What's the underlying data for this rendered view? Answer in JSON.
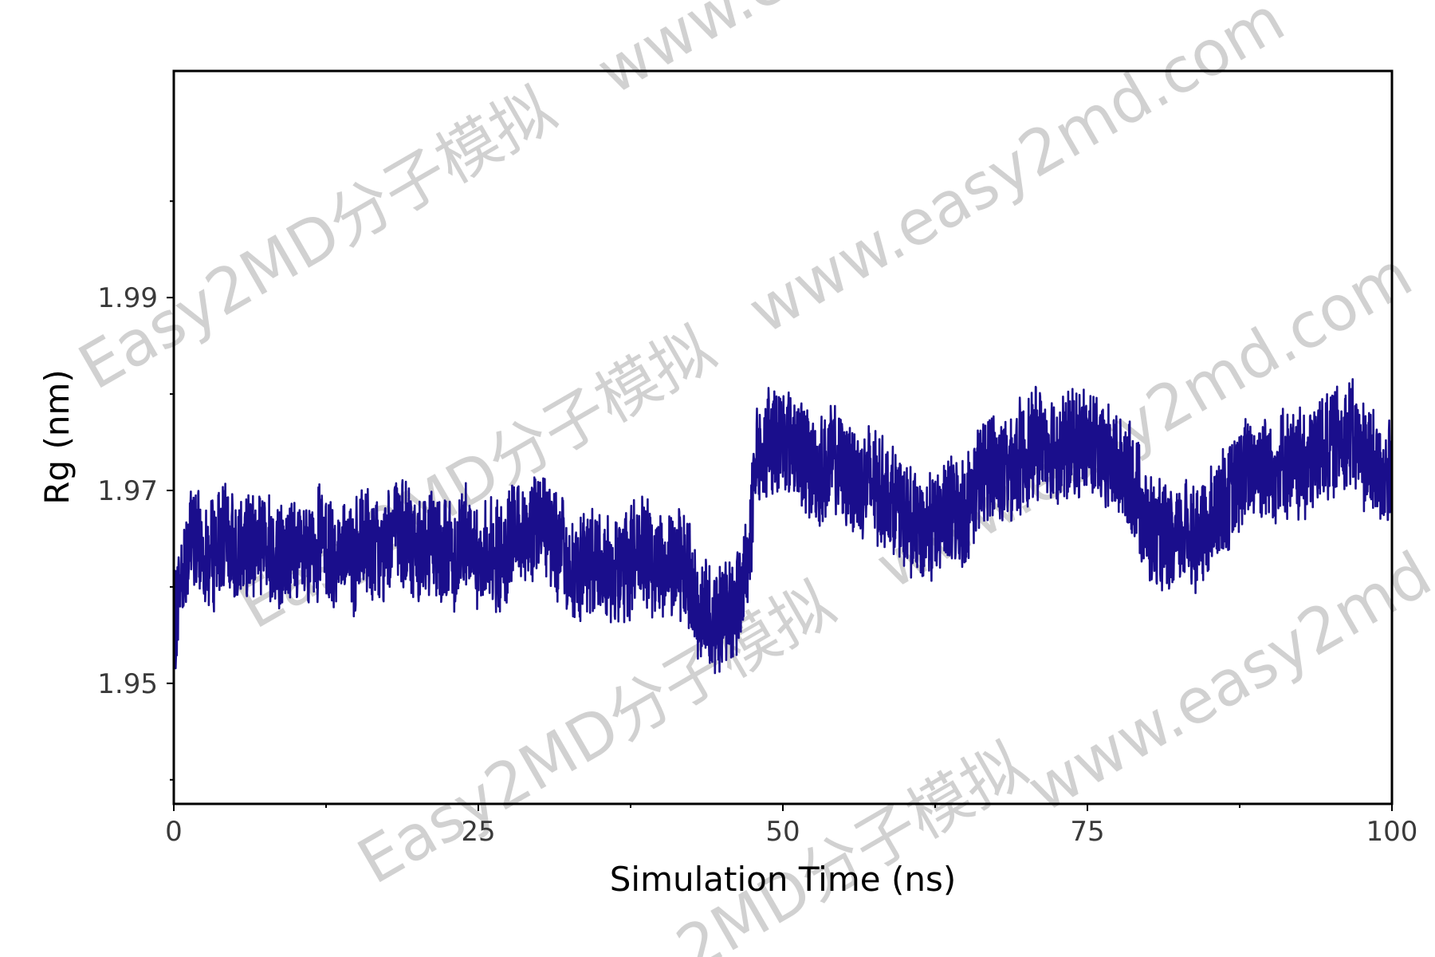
{
  "chart_data": {
    "type": "line",
    "title": "",
    "xlabel": "Simulation Time (ns)",
    "ylabel": "Rg (nm)",
    "xlim": [
      0,
      100
    ],
    "ylim": [
      1.9375,
      2.0135
    ],
    "x_ticks": [
      0,
      25,
      50,
      75,
      100
    ],
    "x_tick_labels": [
      "0",
      "25",
      "50",
      "75",
      "100"
    ],
    "x_minor_ticks": [
      12.5,
      37.5,
      62.5,
      87.5
    ],
    "y_ticks": [
      1.95,
      1.97,
      1.99
    ],
    "y_tick_labels": [
      "1.95",
      "1.97",
      "1.99"
    ],
    "y_minor_ticks": [
      1.94,
      1.96,
      1.98,
      2.0
    ],
    "grid": false,
    "legend": "none",
    "colors": {
      "line": "#1a0e8c",
      "axis": "#000000",
      "tick_label": "#3a3a3a",
      "watermark": "#c9c9c9"
    },
    "series": [
      {
        "x": [
          0,
          1,
          2,
          3,
          4,
          5,
          6,
          7,
          8,
          9,
          10,
          11,
          12,
          13,
          14,
          15,
          16,
          17,
          18,
          19,
          20,
          21,
          22,
          23,
          24,
          25,
          26,
          27,
          28,
          29,
          30,
          31,
          32,
          33,
          34,
          35,
          36,
          37,
          38,
          39,
          40,
          41,
          42,
          43,
          44,
          45,
          46,
          47,
          48,
          49,
          50,
          51,
          52,
          53,
          54,
          55,
          56,
          57,
          58,
          59,
          60,
          61,
          62,
          63,
          64,
          65,
          66,
          67,
          68,
          69,
          70,
          71,
          72,
          73,
          74,
          75,
          76,
          77,
          78,
          79,
          80,
          81,
          82,
          83,
          84,
          85,
          86,
          87,
          88,
          89,
          90,
          91,
          92,
          93,
          94,
          95,
          96,
          97,
          98,
          99,
          100
        ],
        "values": [
          1.956,
          1.964,
          1.965,
          1.963,
          1.965,
          1.964,
          1.964,
          1.965,
          1.964,
          1.963,
          1.964,
          1.962,
          1.965,
          1.963,
          1.964,
          1.963,
          1.965,
          1.963,
          1.966,
          1.965,
          1.964,
          1.965,
          1.964,
          1.963,
          1.966,
          1.963,
          1.964,
          1.962,
          1.966,
          1.965,
          1.967,
          1.966,
          1.963,
          1.961,
          1.962,
          1.963,
          1.962,
          1.962,
          1.964,
          1.963,
          1.962,
          1.963,
          1.962,
          1.958,
          1.957,
          1.957,
          1.958,
          1.962,
          1.974,
          1.975,
          1.976,
          1.975,
          1.973,
          1.972,
          1.973,
          1.972,
          1.971,
          1.971,
          1.97,
          1.969,
          1.967,
          1.966,
          1.966,
          1.967,
          1.968,
          1.968,
          1.971,
          1.973,
          1.972,
          1.973,
          1.974,
          1.975,
          1.975,
          1.974,
          1.975,
          1.975,
          1.974,
          1.973,
          1.972,
          1.97,
          1.966,
          1.965,
          1.964,
          1.966,
          1.965,
          1.966,
          1.969,
          1.97,
          1.972,
          1.973,
          1.972,
          1.973,
          1.972,
          1.973,
          1.974,
          1.975,
          1.976,
          1.975,
          1.973,
          1.972,
          1.971
        ]
      }
    ]
  },
  "watermarks": [
    "Easy2MD分子模拟",
    "www.easy2md.com",
    "Easy2MD分子模拟",
    "www.easy2md.com",
    "Easy2MD分子模拟",
    "www.easy2md.com",
    "www.e",
    "2MD分子模拟"
  ]
}
